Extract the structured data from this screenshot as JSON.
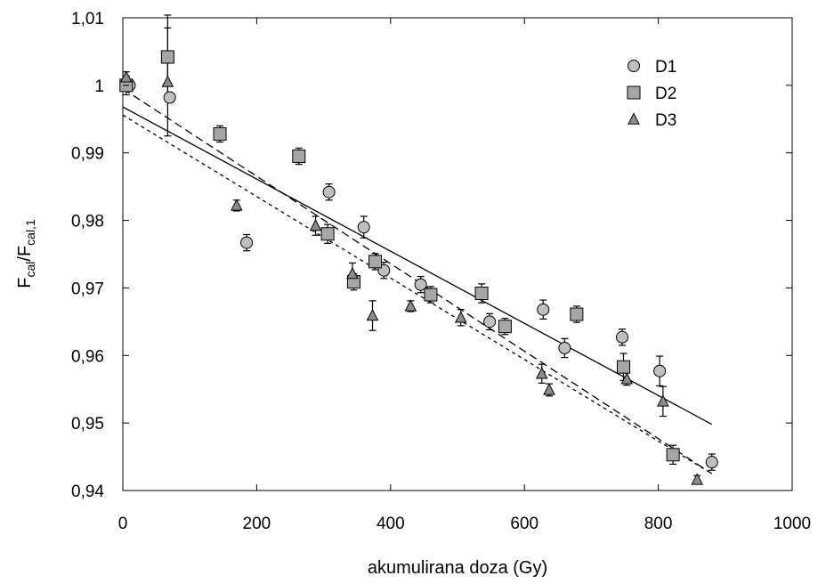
{
  "chart_data": {
    "type": "scatter",
    "title": "",
    "xlabel": "akumulirana doza (Gy)",
    "ylabel": {
      "main": "F",
      "sub1": "cal",
      "mid": "/F",
      "sub2": "cal,1"
    },
    "xlim": [
      0,
      1000
    ],
    "ylim": [
      0.94,
      1.01
    ],
    "x_ticks": [
      0,
      200,
      400,
      600,
      800,
      1000
    ],
    "y_ticks": [
      0.94,
      0.95,
      0.96,
      0.97,
      0.98,
      0.99,
      1.0,
      1.01
    ],
    "x_tick_labels": [
      "0",
      "200",
      "400",
      "600",
      "800",
      "1000"
    ],
    "y_tick_labels": [
      "0,94",
      "0,95",
      "0,96",
      "0,97",
      "0,98",
      "0,99",
      "1",
      "1,01"
    ],
    "grid": false,
    "legend_position": "top-right",
    "series": [
      {
        "name": "D1",
        "marker": "circle",
        "color": "#bfbfbf",
        "points": [
          {
            "x": 10,
            "y": 1.0,
            "err": 0.0008
          },
          {
            "x": 70,
            "y": 0.9982,
            "err": 0.0007
          },
          {
            "x": 185,
            "y": 0.9767,
            "err": 0.0012
          },
          {
            "x": 308,
            "y": 0.9842,
            "err": 0.0012
          },
          {
            "x": 360,
            "y": 0.979,
            "err": 0.0016
          },
          {
            "x": 390,
            "y": 0.9726,
            "err": 0.0012
          },
          {
            "x": 445,
            "y": 0.9705,
            "err": 0.0012
          },
          {
            "x": 548,
            "y": 0.965,
            "err": 0.0012
          },
          {
            "x": 628,
            "y": 0.9668,
            "err": 0.0014
          },
          {
            "x": 660,
            "y": 0.9611,
            "err": 0.0014
          },
          {
            "x": 746,
            "y": 0.9627,
            "err": 0.0012
          },
          {
            "x": 802,
            "y": 0.9577,
            "err": 0.0022
          },
          {
            "x": 880,
            "y": 0.9442,
            "err": 0.0012
          }
        ]
      },
      {
        "name": "D2",
        "marker": "square",
        "color": "#a6a6a6",
        "points": [
          {
            "x": 5,
            "y": 1.0,
            "err": 0.0014
          },
          {
            "x": 67,
            "y": 1.0042,
            "err": 0.0062
          },
          {
            "x": 145,
            "y": 0.9928,
            "err": 0.0012
          },
          {
            "x": 263,
            "y": 0.9895,
            "err": 0.0012
          },
          {
            "x": 306,
            "y": 0.978,
            "err": 0.0014
          },
          {
            "x": 345,
            "y": 0.9709,
            "err": 0.0012
          },
          {
            "x": 377,
            "y": 0.9739,
            "err": 0.0012
          },
          {
            "x": 460,
            "y": 0.969,
            "err": 0.0012
          },
          {
            "x": 536,
            "y": 0.9692,
            "err": 0.0014
          },
          {
            "x": 571,
            "y": 0.9643,
            "err": 0.0012
          },
          {
            "x": 678,
            "y": 0.9661,
            "err": 0.0012
          },
          {
            "x": 748,
            "y": 0.9583,
            "err": 0.002
          },
          {
            "x": 822,
            "y": 0.9453,
            "err": 0.0014
          }
        ]
      },
      {
        "name": "D3",
        "marker": "triangle",
        "color": "#8c8c8c",
        "points": [
          {
            "x": 5,
            "y": 1.0012,
            "err": 0.0008
          },
          {
            "x": 67,
            "y": 1.0005,
            "err": 0.008
          },
          {
            "x": 170,
            "y": 0.9822,
            "err": 0.0008
          },
          {
            "x": 288,
            "y": 0.9792,
            "err": 0.0014
          },
          {
            "x": 343,
            "y": 0.9721,
            "err": 0.0016
          },
          {
            "x": 373,
            "y": 0.9659,
            "err": 0.0022
          },
          {
            "x": 430,
            "y": 0.9673,
            "err": 0.0008
          },
          {
            "x": 505,
            "y": 0.9656,
            "err": 0.0012
          },
          {
            "x": 626,
            "y": 0.9573,
            "err": 0.0014
          },
          {
            "x": 637,
            "y": 0.9549,
            "err": 0.0009
          },
          {
            "x": 753,
            "y": 0.9565,
            "err": 0.0009
          },
          {
            "x": 807,
            "y": 0.9532,
            "err": 0.0022
          },
          {
            "x": 858,
            "y": 0.9416,
            "err": 0.0006
          }
        ]
      }
    ],
    "fits": [
      {
        "style": "solid",
        "x": [
          0,
          880
        ],
        "y": [
          0.9968,
          0.9498
        ]
      },
      {
        "style": "long-dash",
        "x": [
          0,
          880
        ],
        "y": [
          0.9995,
          0.9425
        ]
      },
      {
        "style": "short-dash",
        "x": [
          0,
          880
        ],
        "y": [
          0.9956,
          0.9425
        ]
      }
    ]
  }
}
